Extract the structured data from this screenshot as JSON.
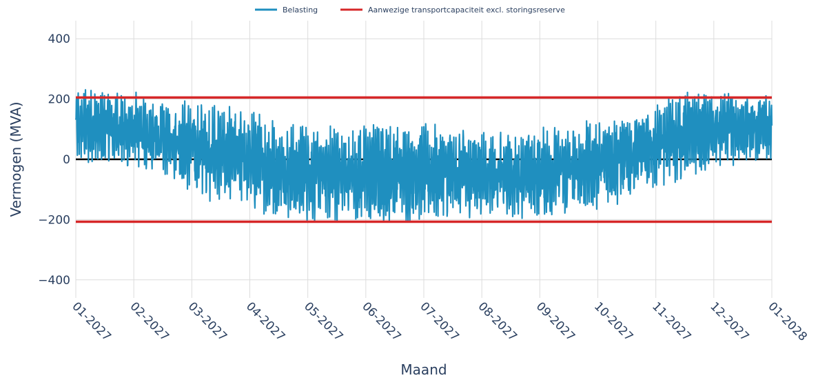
{
  "chart_data": {
    "type": "line",
    "title": "",
    "xlabel": "Maand",
    "ylabel": "Vermogen (MVA)",
    "x_ticks": [
      "01-2027",
      "02-2027",
      "03-2027",
      "04-2027",
      "05-2027",
      "06-2027",
      "07-2027",
      "08-2027",
      "09-2027",
      "10-2027",
      "11-2027",
      "12-2027",
      "01-2028"
    ],
    "y_ticks": [
      400,
      200,
      0,
      -200,
      -400
    ],
    "y_tick_labels": [
      "400",
      "200",
      "0",
      "−200",
      "−400"
    ],
    "ylim": [
      -460,
      460
    ],
    "xlim": [
      "2027-01-01",
      "2028-01-01"
    ],
    "grid": true,
    "legend_position": "top-center",
    "series": [
      {
        "name": "Belasting",
        "color": "#1f8fbf",
        "monthly_envelope": {
          "months": [
            "01-2027",
            "02-2027",
            "03-2027",
            "04-2027",
            "05-2027",
            "06-2027",
            "07-2027",
            "08-2027",
            "09-2027",
            "10-2027",
            "11-2027",
            "12-2027"
          ],
          "max": [
            255,
            215,
            210,
            145,
            125,
            140,
            125,
            105,
            130,
            180,
            240,
            225
          ],
          "min": [
            -35,
            -70,
            -175,
            -215,
            -225,
            -225,
            -210,
            -210,
            -200,
            -160,
            -80,
            -25
          ]
        }
      },
      {
        "name": "Aanwezige transportcapaciteit excl. storingsreserve",
        "color": "#d62728",
        "constant_values": [
          205,
          -207
        ]
      }
    ]
  }
}
